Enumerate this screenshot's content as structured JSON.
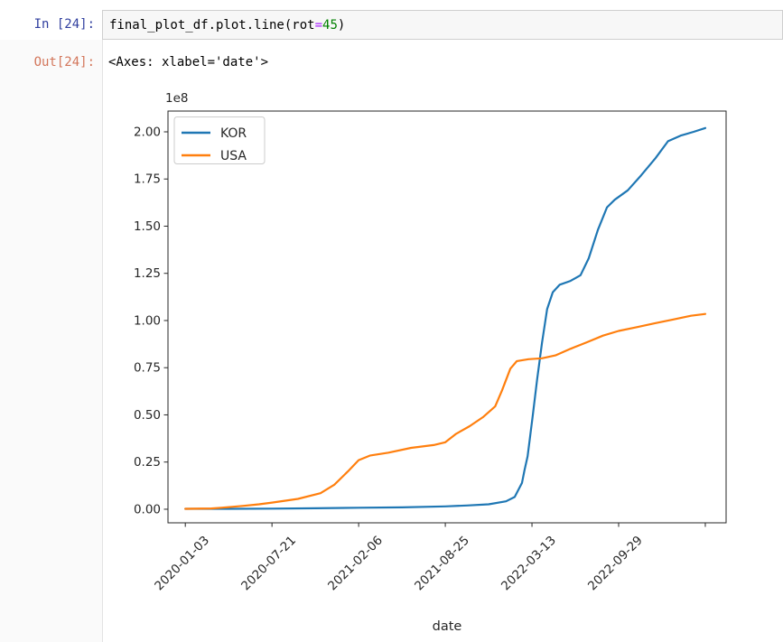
{
  "notebook": {
    "input_prompt": "In [24]:",
    "output_prompt": "Out[24]:",
    "code_tokens": [
      {
        "text": "final_plot_df.plot.line(rot",
        "color": "#000000"
      },
      {
        "text": "=",
        "color": "#AA22FF"
      },
      {
        "text": "45",
        "color": "#008000"
      },
      {
        "text": ")",
        "color": "#000000"
      }
    ],
    "output_text": "<Axes: xlabel='date'>"
  },
  "chart_data": {
    "type": "line",
    "title": "",
    "xlabel": "date",
    "ylabel": "",
    "offset_label": "1e8",
    "x_unit": "days since 2020-01-03",
    "y_multiplier": 100000000,
    "grid": false,
    "xlim": [
      -40,
      1248
    ],
    "ylim": [
      -0.072,
      2.11
    ],
    "legend": {
      "position": "upper left"
    },
    "x_ticks": [
      {
        "pos": 0,
        "label": "2020-01-03"
      },
      {
        "pos": 200,
        "label": "2020-07-21"
      },
      {
        "pos": 400,
        "label": "2021-02-06"
      },
      {
        "pos": 600,
        "label": "2021-08-25"
      },
      {
        "pos": 800,
        "label": "2022-03-13"
      },
      {
        "pos": 1000,
        "label": "2022-09-29"
      },
      {
        "pos": 1200,
        "label": ""
      }
    ],
    "y_ticks": [
      {
        "value": 0.0,
        "label": "0.00"
      },
      {
        "value": 0.25,
        "label": "0.25"
      },
      {
        "value": 0.5,
        "label": "0.50"
      },
      {
        "value": 0.75,
        "label": "0.75"
      },
      {
        "value": 1.0,
        "label": "1.00"
      },
      {
        "value": 1.25,
        "label": "1.25"
      },
      {
        "value": 1.5,
        "label": "1.50"
      },
      {
        "value": 1.75,
        "label": "1.75"
      },
      {
        "value": 2.0,
        "label": "2.00"
      }
    ],
    "series": [
      {
        "name": "KOR",
        "color": "#1f77b4",
        "points": [
          [
            0,
            0.002
          ],
          [
            100,
            0.002
          ],
          [
            200,
            0.003
          ],
          [
            300,
            0.005
          ],
          [
            400,
            0.008
          ],
          [
            500,
            0.01
          ],
          [
            600,
            0.015
          ],
          [
            650,
            0.02
          ],
          [
            700,
            0.026
          ],
          [
            740,
            0.042
          ],
          [
            760,
            0.065
          ],
          [
            777,
            0.14
          ],
          [
            783,
            0.21
          ],
          [
            790,
            0.28
          ],
          [
            796,
            0.39
          ],
          [
            802,
            0.5
          ],
          [
            812,
            0.69
          ],
          [
            823,
            0.88
          ],
          [
            835,
            1.06
          ],
          [
            848,
            1.15
          ],
          [
            864,
            1.19
          ],
          [
            889,
            1.21
          ],
          [
            912,
            1.24
          ],
          [
            931,
            1.33
          ],
          [
            952,
            1.48
          ],
          [
            973,
            1.6
          ],
          [
            991,
            1.64
          ],
          [
            1021,
            1.69
          ],
          [
            1052,
            1.77
          ],
          [
            1085,
            1.86
          ],
          [
            1114,
            1.95
          ],
          [
            1143,
            1.98
          ],
          [
            1173,
            2.0
          ],
          [
            1200,
            2.02
          ]
        ]
      },
      {
        "name": "USA",
        "color": "#ff7f0e",
        "points": [
          [
            0,
            0.002
          ],
          [
            60,
            0.004
          ],
          [
            83,
            0.008
          ],
          [
            135,
            0.018
          ],
          [
            170,
            0.026
          ],
          [
            200,
            0.035
          ],
          [
            260,
            0.055
          ],
          [
            312,
            0.085
          ],
          [
            344,
            0.13
          ],
          [
            375,
            0.2
          ],
          [
            400,
            0.26
          ],
          [
            427,
            0.285
          ],
          [
            469,
            0.3
          ],
          [
            521,
            0.325
          ],
          [
            573,
            0.34
          ],
          [
            600,
            0.355
          ],
          [
            625,
            0.4
          ],
          [
            656,
            0.44
          ],
          [
            688,
            0.49
          ],
          [
            715,
            0.545
          ],
          [
            731,
            0.63
          ],
          [
            750,
            0.745
          ],
          [
            765,
            0.785
          ],
          [
            792,
            0.795
          ],
          [
            823,
            0.8
          ],
          [
            854,
            0.815
          ],
          [
            889,
            0.85
          ],
          [
            927,
            0.885
          ],
          [
            964,
            0.92
          ],
          [
            1000,
            0.945
          ],
          [
            1042,
            0.965
          ],
          [
            1083,
            0.985
          ],
          [
            1125,
            1.005
          ],
          [
            1167,
            1.025
          ],
          [
            1200,
            1.035
          ]
        ]
      }
    ]
  }
}
